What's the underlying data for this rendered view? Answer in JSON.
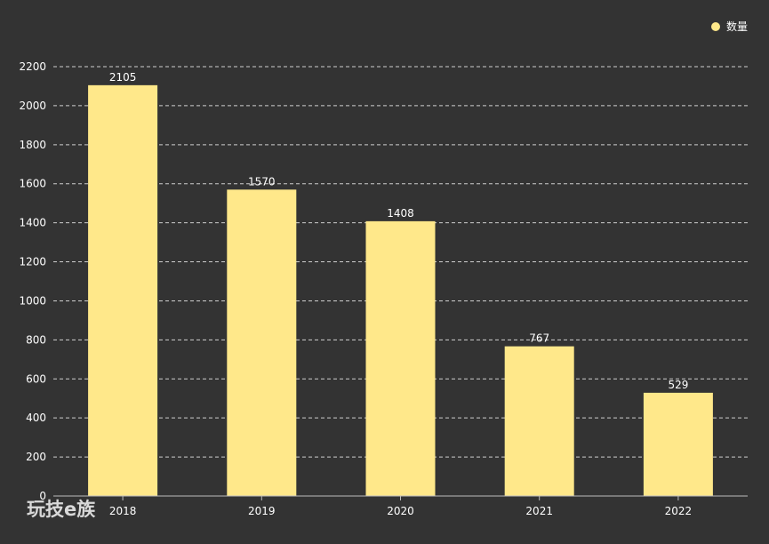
{
  "chart_data": {
    "type": "bar",
    "categories": [
      "2018",
      "2019",
      "2020",
      "2021",
      "2022"
    ],
    "series": [
      {
        "name": "数量",
        "values": [
          2105,
          1570,
          1408,
          767,
          529
        ]
      }
    ],
    "ylim": [
      0,
      2200
    ],
    "y_ticks": [
      0,
      200,
      400,
      600,
      800,
      1000,
      1200,
      1400,
      1600,
      1800,
      2000,
      2200
    ],
    "grid": "horizontal-dashed",
    "legend_position": "top-right",
    "data_labels": true
  },
  "colors": {
    "background": "#333333",
    "bar": "#FFE88A",
    "text": "#ffffff",
    "grid": "#cfcfcf",
    "axis": "#bdbdbd"
  },
  "watermark": "玩技e族"
}
